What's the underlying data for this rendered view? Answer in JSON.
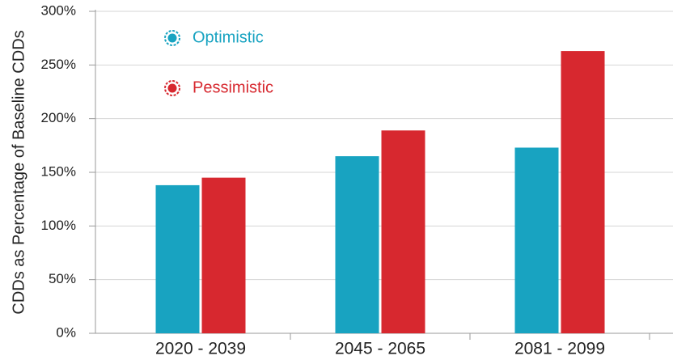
{
  "chart_data": {
    "type": "bar",
    "y_label": "CDDs as Percentage of Baseline CDDs",
    "categories": [
      "2020 - 2039",
      "2045 - 2065",
      "2081 - 2099"
    ],
    "series": [
      {
        "name": "Optimistic",
        "color": "#18a3c1",
        "values": [
          138,
          165,
          173
        ]
      },
      {
        "name": "Pessimistic",
        "color": "#d7282f",
        "values": [
          145,
          189,
          263
        ]
      }
    ],
    "ylim": [
      0,
      300
    ],
    "yticks": [
      {
        "value": 0,
        "label": "0%"
      },
      {
        "value": 50,
        "label": "50%"
      },
      {
        "value": 100,
        "label": "100%"
      },
      {
        "value": 150,
        "label": "150%"
      },
      {
        "value": 200,
        "label": "200%"
      },
      {
        "value": 250,
        "label": "250%"
      },
      {
        "value": 300,
        "label": "300%"
      }
    ],
    "grid": true,
    "legend": "upper left"
  }
}
